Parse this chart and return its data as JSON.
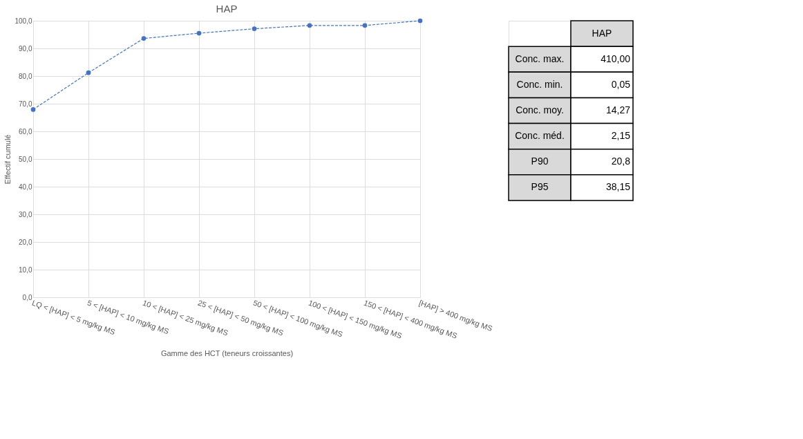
{
  "chart_data": [
    {
      "type": "line",
      "title": "HAP",
      "xlabel": "Gamme des HCT (teneurs croissantes)",
      "ylabel": "Effectif cumulé",
      "categories": [
        "LQ < [HAP] < 5 mg/kg MS",
        "5 < [HAP] < 10 mg/kg MS",
        "10 < [HAP] < 25 mg/kg MS",
        "25 < [HAP] < 50 mg/kg MS",
        "50 < [HAP] < 100 mg/kg MS",
        "100 < [HAP] < 150 mg/kg MS",
        "150 < [HAP] < 400 mg/kg MS",
        "[HAP] > 400 mg/kg MS"
      ],
      "series": [
        {
          "color": "#4472c4",
          "values": [
            67.9,
            81.2,
            93.6,
            95.5,
            97.1,
            98.3,
            98.3,
            100.0
          ]
        }
      ],
      "ylim": [
        0,
        100
      ],
      "yticks": [
        {
          "value": 0,
          "label": "0,0"
        },
        {
          "value": 10,
          "label": "10,0"
        },
        {
          "value": 20,
          "label": "20,0"
        },
        {
          "value": 30,
          "label": "30,0"
        },
        {
          "value": 40,
          "label": "40,0"
        },
        {
          "value": 50,
          "label": "50,0"
        },
        {
          "value": 60,
          "label": "60,0"
        },
        {
          "value": 70,
          "label": "70,0"
        },
        {
          "value": 80,
          "label": "80,0"
        },
        {
          "value": 90,
          "label": "90,0"
        },
        {
          "value": 100,
          "label": "100,0"
        }
      ],
      "grid": true,
      "marker": "circle",
      "line_style": "dashed"
    },
    {
      "type": "other",
      "annotations": [
        "HAP",
        "Conc. max.",
        "410,00",
        "Conc. min.",
        "0,05",
        "Conc. moy.",
        "14,27",
        "Conc. méd.",
        "2,15",
        "P90",
        "20,8",
        "P95",
        "38,15"
      ]
    }
  ]
}
